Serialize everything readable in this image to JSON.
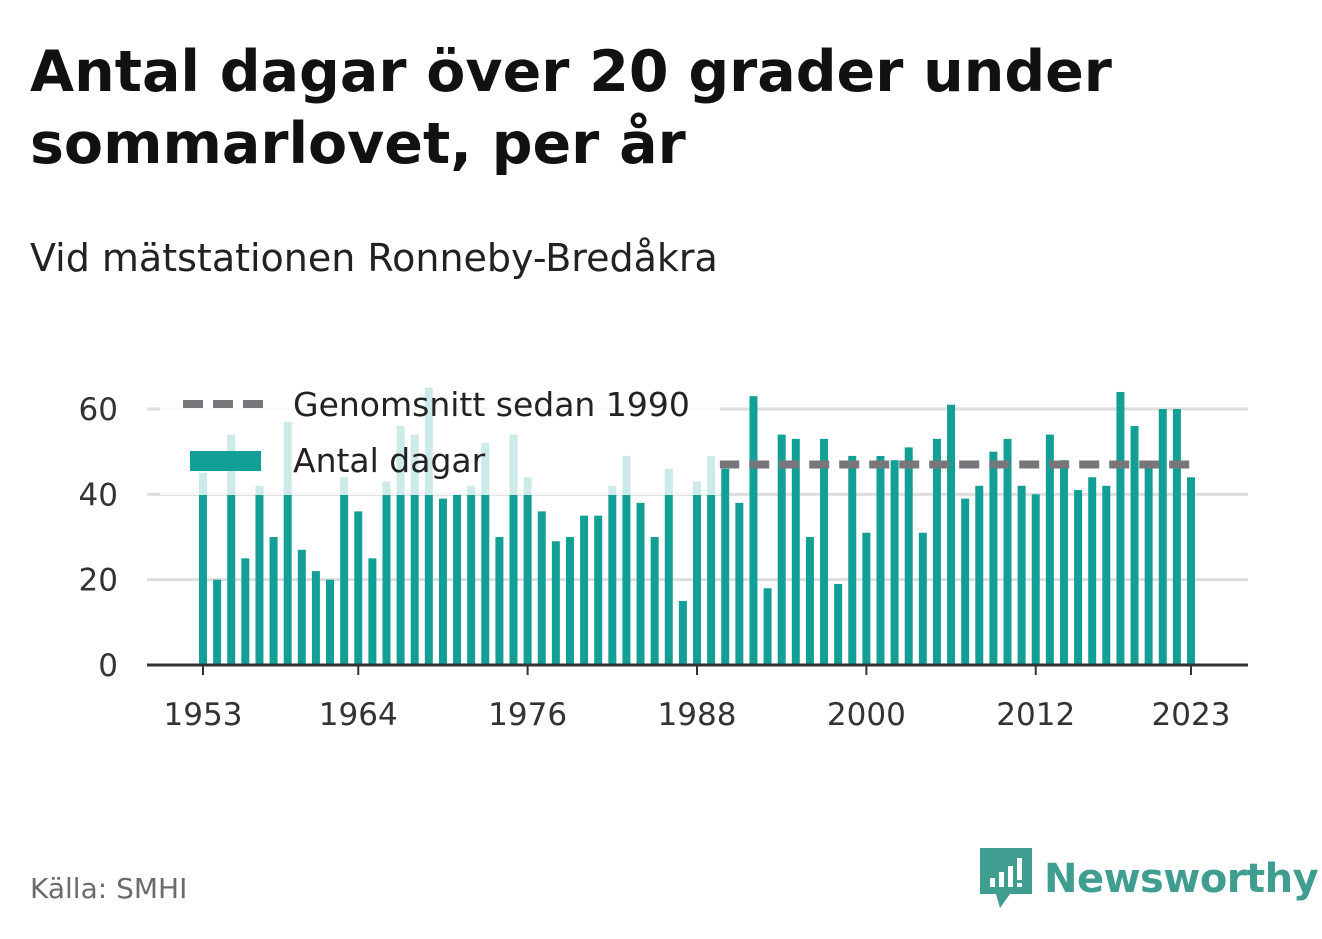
{
  "title": "Antal dagar över 20 grader under sommarlovet, per år",
  "subtitle": "Vid mätstationen Ronneby-Bredåkra",
  "source": "Källa: SMHI",
  "brand": "Newsworthy",
  "colors": {
    "bar": "#12a096",
    "average": "#77767b",
    "grid": "#dedede",
    "axis": "#333333"
  },
  "chart_data": {
    "type": "bar",
    "ylim": [
      0,
      65
    ],
    "yticks": [
      "0",
      "20",
      "40",
      "60"
    ],
    "xticks": [
      "1953",
      "1964",
      "1976",
      "1988",
      "2000",
      "2012",
      "2023"
    ],
    "grid": true,
    "legend_position": "top-left",
    "average": {
      "name": "Genomsnitt sedan 1990",
      "value": 47,
      "from": 1990,
      "to": 2023
    },
    "series": [
      {
        "name": "Antal dagar",
        "x": [
          1953,
          1954,
          1955,
          1956,
          1957,
          1958,
          1959,
          1960,
          1961,
          1962,
          1963,
          1964,
          1965,
          1966,
          1967,
          1968,
          1969,
          1970,
          1971,
          1972,
          1973,
          1974,
          1975,
          1976,
          1977,
          1978,
          1979,
          1980,
          1981,
          1982,
          1983,
          1984,
          1985,
          1986,
          1987,
          1988,
          1989,
          1990,
          1991,
          1992,
          1993,
          1994,
          1995,
          1996,
          1997,
          1998,
          1999,
          2000,
          2001,
          2002,
          2003,
          2004,
          2005,
          2006,
          2007,
          2008,
          2009,
          2010,
          2011,
          2012,
          2013,
          2014,
          2015,
          2016,
          2017,
          2018,
          2019,
          2020,
          2021,
          2022,
          2023
        ],
        "values": [
          45,
          20,
          54,
          25,
          42,
          30,
          57,
          27,
          22,
          20,
          44,
          36,
          25,
          43,
          56,
          54,
          65,
          39,
          40,
          42,
          52,
          30,
          54,
          44,
          36,
          29,
          30,
          35,
          35,
          42,
          49,
          38,
          30,
          46,
          15,
          43,
          49,
          46,
          38,
          63,
          18,
          54,
          53,
          30,
          53,
          19,
          49,
          31,
          49,
          48,
          51,
          31,
          53,
          61,
          39,
          42,
          50,
          53,
          42,
          40,
          54,
          48,
          41,
          44,
          42,
          64,
          56,
          47,
          60,
          60,
          44
        ]
      }
    ]
  }
}
